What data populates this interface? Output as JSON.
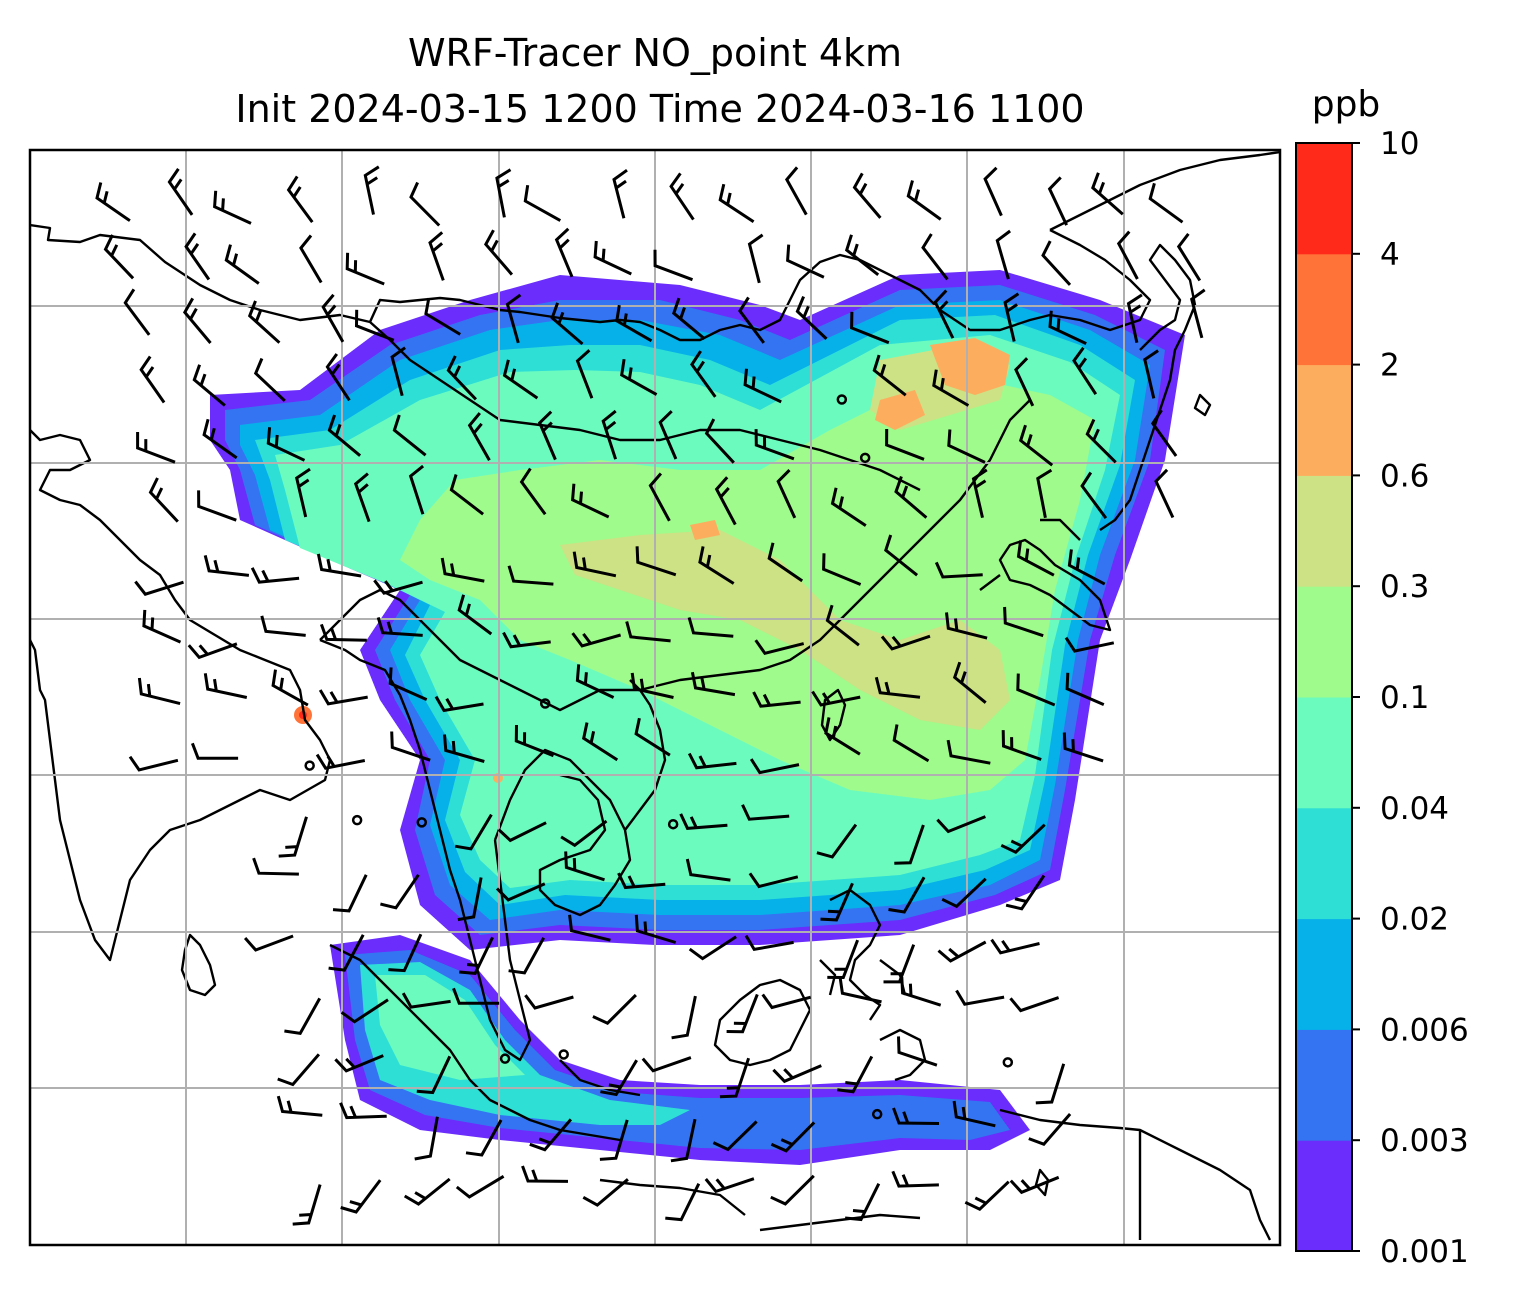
{
  "map": {
    "title_line1": "WRF-Tracer NO_point 4km",
    "title_line2": "Init 2024-03-15 1200 Time 2024-03-16 1100",
    "field": "NO_point tracer concentration",
    "grid": "on",
    "coastlines": "on",
    "wind_barbs": "on",
    "colors": {
      "gridline": "#b0b0b0",
      "coastline": "#000000",
      "barb": "#000000"
    }
  },
  "colorbar": {
    "unit": "ppb",
    "placement": "right",
    "levels": [
      "0.001",
      "0.003",
      "0.006",
      "0.02",
      "0.04",
      "0.1",
      "0.3",
      "0.6",
      "2",
      "4",
      "10"
    ],
    "colors": [
      "#6a2dfb",
      "#3474f2",
      "#06b1ea",
      "#2edfd6",
      "#6cfbbf",
      "#9ffb8b",
      "#cce284",
      "#fdad5e",
      "#ff7339",
      "#ff2a1a"
    ]
  }
}
